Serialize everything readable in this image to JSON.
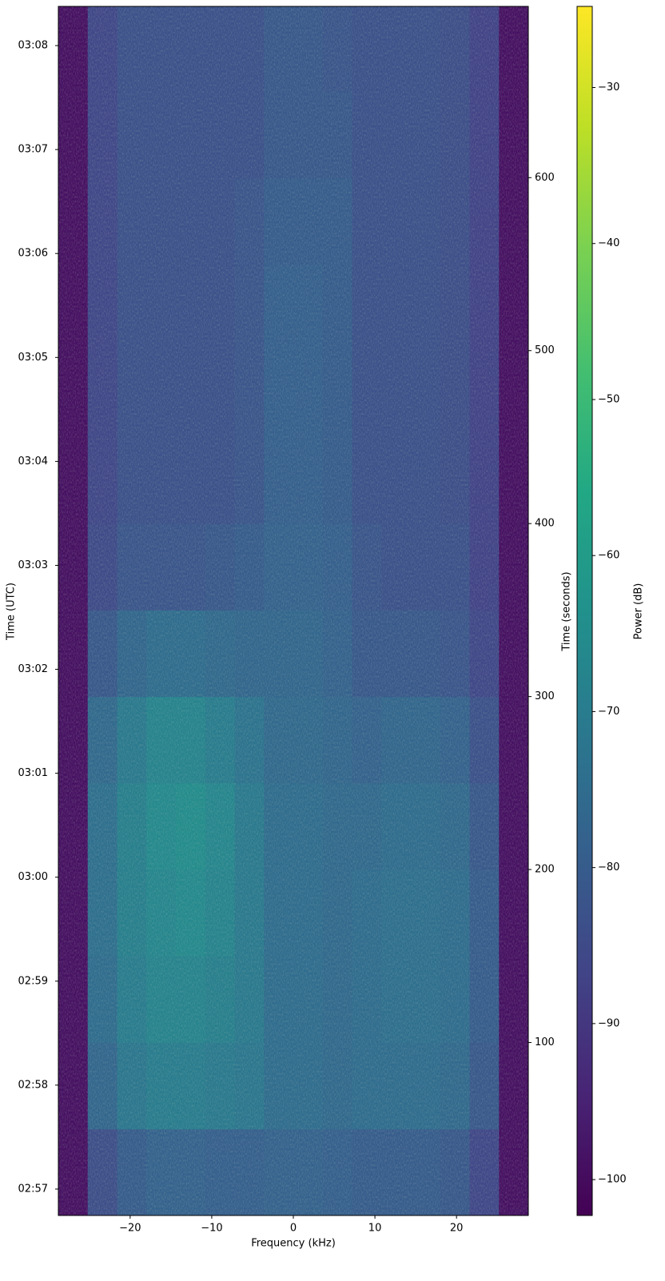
{
  "chart_data": {
    "type": "heatmap",
    "x_label": "Frequency (kHz)",
    "y_label": "Time (UTC)",
    "y2_label": "Time (seconds)",
    "colorbar_label": "Power (dB)",
    "colormap": "viridis",
    "xlim": [
      -28.8,
      28.8
    ],
    "xticks": [
      {
        "value": -20,
        "label": "−20"
      },
      {
        "value": -10,
        "label": "−10"
      },
      0,
      10,
      20
    ],
    "ylim": [
      56.746,
      68.377
    ],
    "yticks": [
      {
        "value": 57,
        "label": "02:57"
      },
      {
        "value": 58,
        "label": "02:58"
      },
      {
        "value": 59,
        "label": "02:59"
      },
      {
        "value": 60,
        "label": "03:00"
      },
      {
        "value": 61,
        "label": "03:01"
      },
      {
        "value": 62,
        "label": "03:02"
      },
      {
        "value": 63,
        "label": "03:03"
      },
      {
        "value": 64,
        "label": "03:04"
      },
      {
        "value": 65,
        "label": "03:05"
      },
      {
        "value": 66,
        "label": "03:06"
      },
      {
        "value": 67,
        "label": "03:07"
      },
      {
        "value": 68,
        "label": "03:08"
      }
    ],
    "y2lim": [
      0,
      699
    ],
    "y2ticks": [
      100,
      200,
      300,
      400,
      500,
      600
    ],
    "clim": [
      -102.3,
      -24.8
    ],
    "cticks": [
      {
        "value": -100,
        "label": "−100"
      },
      {
        "value": -90,
        "label": "−90"
      },
      {
        "value": -80,
        "label": "−80"
      },
      {
        "value": -70,
        "label": "−70"
      },
      {
        "value": -60,
        "label": "−60"
      },
      {
        "value": -50,
        "label": "−50"
      },
      {
        "value": -40,
        "label": "−40"
      },
      {
        "value": -30,
        "label": "−30"
      }
    ],
    "freq_edges": [
      -28.8,
      -25.2,
      -21.6,
      -18,
      -14.4,
      -10.8,
      -7.2,
      -3.6,
      0,
      3.6,
      7.2,
      10.8,
      14.4,
      18,
      21.6,
      25.2,
      28.8
    ],
    "time_edges": [
      0,
      50,
      100,
      150,
      200,
      250,
      300,
      350,
      400,
      450,
      500,
      550,
      600,
      650,
      699
    ],
    "power": [
      [
        -99,
        -84,
        -80,
        -78,
        -78,
        -79,
        -79,
        -78,
        -78,
        -79,
        -80,
        -80,
        -80,
        -81,
        -86,
        -99
      ],
      [
        -99,
        -77,
        -72,
        -70,
        -70,
        -71,
        -72,
        -75,
        -75,
        -76,
        -75,
        -75,
        -75,
        -76,
        -81,
        -99
      ],
      [
        -99,
        -75,
        -70,
        -68,
        -68,
        -69,
        -71,
        -75,
        -75,
        -76,
        -75,
        -74,
        -74,
        -75,
        -80,
        -99
      ],
      [
        -99,
        -74,
        -69,
        -67,
        -66,
        -68,
        -71,
        -75,
        -75,
        -76,
        -75,
        -74,
        -74,
        -75,
        -80,
        -99
      ],
      [
        -99,
        -74,
        -69,
        -66,
        -65,
        -67,
        -71,
        -75,
        -75,
        -76,
        -76,
        -75,
        -75,
        -76,
        -81,
        -99
      ],
      [
        -99,
        -76,
        -71,
        -68,
        -68,
        -70,
        -73,
        -76,
        -76,
        -77,
        -78,
        -77,
        -77,
        -78,
        -83,
        -99
      ],
      [
        -99,
        -81,
        -77,
        -75,
        -75,
        -76,
        -77,
        -77,
        -77,
        -78,
        -81,
        -81,
        -81,
        -82,
        -86,
        -99
      ],
      [
        -99,
        -85,
        -82,
        -82,
        -82,
        -81,
        -80,
        -78,
        -78,
        -79,
        -82,
        -83,
        -83,
        -83,
        -87,
        -99
      ],
      [
        -99,
        -86,
        -83,
        -83,
        -83,
        -83,
        -82,
        -79,
        -79,
        -80,
        -83,
        -83,
        -83,
        -84,
        -87,
        -99
      ],
      [
        -99,
        -86,
        -83,
        -83,
        -83,
        -83,
        -82,
        -79,
        -79,
        -80,
        -83,
        -83,
        -83,
        -84,
        -87,
        -99
      ],
      [
        -99,
        -86,
        -83,
        -83,
        -83,
        -83,
        -82,
        -79,
        -79,
        -80,
        -83,
        -83,
        -83,
        -84,
        -87,
        -99
      ],
      [
        -99,
        -86,
        -83,
        -83,
        -83,
        -83,
        -82,
        -80,
        -80,
        -80,
        -83,
        -83,
        -83,
        -84,
        -87,
        -99
      ],
      [
        -99,
        -86,
        -83,
        -83,
        -83,
        -83,
        -83,
        -81,
        -81,
        -81,
        -83,
        -83,
        -83,
        -84,
        -87,
        -99
      ],
      [
        -99,
        -86,
        -83,
        -83,
        -83,
        -83,
        -83,
        -81,
        -81,
        -82,
        -83,
        -83,
        -83,
        -84,
        -87,
        -99
      ]
    ]
  }
}
